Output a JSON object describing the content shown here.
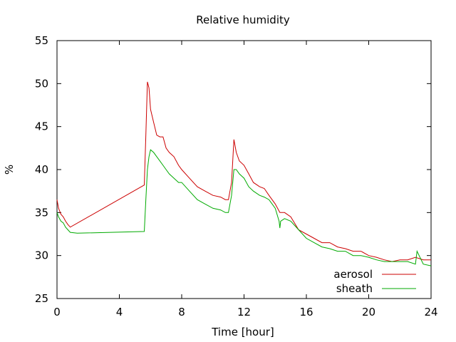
{
  "chart_data": {
    "type": "line",
    "title": "Relative humidity",
    "xlabel": "Time [hour]",
    "ylabel": "%",
    "xlim": [
      0,
      24
    ],
    "ylim": [
      25,
      55
    ],
    "x_ticks": [
      0,
      4,
      8,
      12,
      16,
      20,
      24
    ],
    "y_ticks": [
      25,
      30,
      35,
      40,
      45,
      50,
      55
    ],
    "grid": false,
    "legend_position": "bottom-right",
    "series": [
      {
        "name": "aerosol",
        "color": "#cc0000",
        "x": [
          0,
          0.1,
          0.25,
          0.4,
          0.55,
          0.7,
          0.85,
          5.6,
          5.7,
          5.8,
          5.9,
          6.0,
          6.2,
          6.4,
          6.6,
          6.8,
          7.0,
          7.2,
          7.5,
          7.8,
          8.0,
          8.5,
          9.0,
          9.5,
          10.0,
          10.5,
          10.8,
          11.0,
          11.2,
          11.35,
          11.5,
          11.7,
          12.0,
          12.3,
          12.6,
          13.0,
          13.3,
          13.6,
          14.0,
          14.3,
          14.6,
          15.0,
          15.5,
          16.0,
          16.5,
          17.0,
          17.5,
          18.0,
          18.5,
          19.0,
          19.5,
          20.0,
          20.5,
          21.0,
          21.5,
          22.0,
          22.5,
          23.0,
          23.5,
          24.0
        ],
        "values": [
          36.5,
          35.5,
          34.8,
          34.5,
          34.0,
          33.6,
          33.3,
          38.2,
          44.0,
          50.2,
          49.5,
          47.0,
          45.5,
          44.0,
          43.8,
          43.8,
          42.5,
          42.0,
          41.5,
          40.5,
          40.0,
          39.0,
          38.0,
          37.5,
          37.0,
          36.8,
          36.5,
          36.5,
          38.5,
          43.5,
          42.0,
          41.0,
          40.5,
          39.5,
          38.5,
          38.0,
          37.8,
          37.0,
          36.0,
          35.0,
          35.0,
          34.5,
          33.0,
          32.5,
          32.0,
          31.5,
          31.5,
          31.0,
          30.8,
          30.5,
          30.5,
          30.0,
          29.8,
          29.5,
          29.3,
          29.5,
          29.5,
          29.8,
          29.5,
          29.5
        ]
      },
      {
        "name": "sheath",
        "color": "#00aa00",
        "x": [
          0,
          0.1,
          0.25,
          0.4,
          0.55,
          0.7,
          0.85,
          1.3,
          5.6,
          5.7,
          5.8,
          5.9,
          6.0,
          6.2,
          6.4,
          6.6,
          6.8,
          7.0,
          7.2,
          7.5,
          7.8,
          8.0,
          8.5,
          9.0,
          9.5,
          10.0,
          10.5,
          10.8,
          11.0,
          11.2,
          11.35,
          11.5,
          11.7,
          12.0,
          12.3,
          12.6,
          13.0,
          13.3,
          13.6,
          14.0,
          14.25,
          14.3,
          14.35,
          14.6,
          15.0,
          15.5,
          16.0,
          16.5,
          17.0,
          17.5,
          18.0,
          18.5,
          19.0,
          19.5,
          20.0,
          20.5,
          21.0,
          21.5,
          22.0,
          22.5,
          23.0,
          23.1,
          23.5,
          24.0
        ],
        "values": [
          35.0,
          34.5,
          34.0,
          33.8,
          33.3,
          33.0,
          32.7,
          32.6,
          32.8,
          36.5,
          40.0,
          41.5,
          42.3,
          42.0,
          41.5,
          41.0,
          40.5,
          40.0,
          39.5,
          39.0,
          38.5,
          38.5,
          37.5,
          36.5,
          36.0,
          35.5,
          35.3,
          35.0,
          35.0,
          37.0,
          40.0,
          40.0,
          39.5,
          39.0,
          38.0,
          37.5,
          37.0,
          36.8,
          36.5,
          35.5,
          34.0,
          33.2,
          34.0,
          34.3,
          34.0,
          33.0,
          32.0,
          31.5,
          31.0,
          30.8,
          30.5,
          30.5,
          30.0,
          30.0,
          29.8,
          29.5,
          29.3,
          29.3,
          29.3,
          29.3,
          29.0,
          30.5,
          29.0,
          28.8
        ]
      }
    ]
  }
}
